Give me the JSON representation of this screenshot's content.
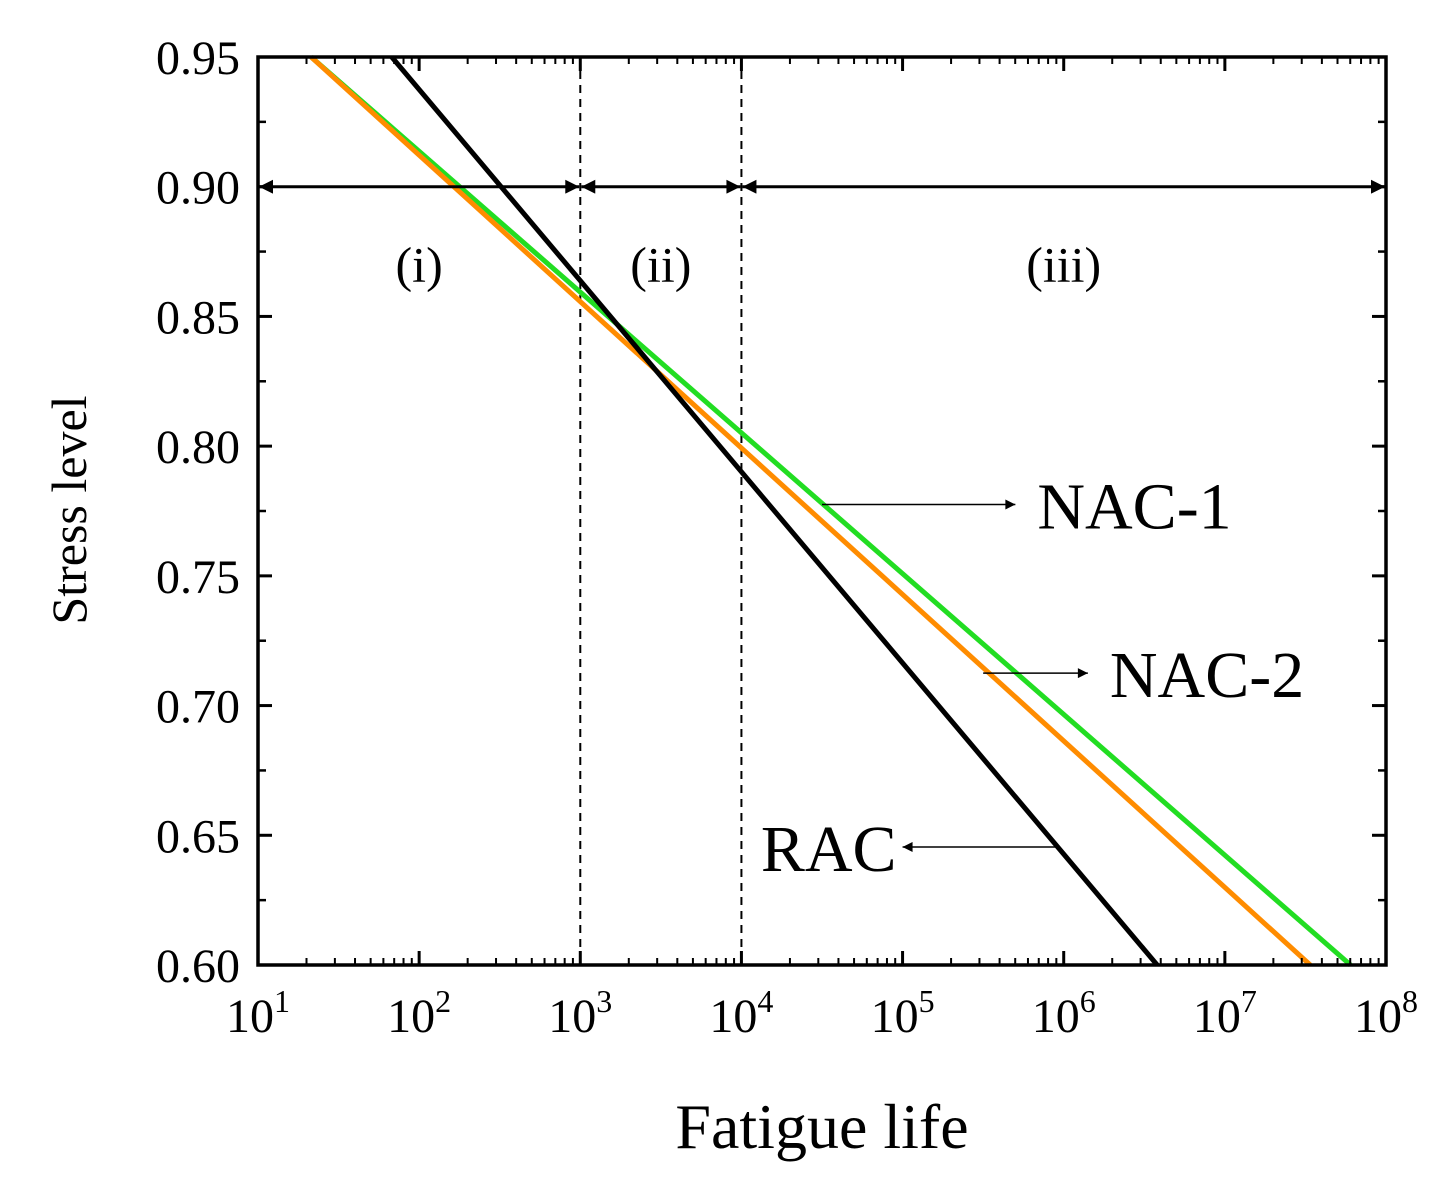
{
  "chart_data": {
    "type": "line",
    "title": "",
    "xlabel": "Fatigue life",
    "ylabel": "Stress level",
    "xscale": "log10",
    "xlim_exponent": [
      1,
      8
    ],
    "ylim": [
      0.6,
      0.95
    ],
    "x_ticks": [
      {
        "base": "10",
        "exp": "1"
      },
      {
        "base": "10",
        "exp": "2"
      },
      {
        "base": "10",
        "exp": "3"
      },
      {
        "base": "10",
        "exp": "4"
      },
      {
        "base": "10",
        "exp": "5"
      },
      {
        "base": "10",
        "exp": "6"
      },
      {
        "base": "10",
        "exp": "7"
      },
      {
        "base": "10",
        "exp": "8"
      }
    ],
    "y_ticks": [
      "0.60",
      "0.65",
      "0.70",
      "0.75",
      "0.80",
      "0.85",
      "0.90",
      "0.95"
    ],
    "series": [
      {
        "name": "NAC-1",
        "color": "#22dd22",
        "log10_x": [
          1.33,
          7.78
        ],
        "y": [
          0.95,
          0.6
        ]
      },
      {
        "name": "NAC-2",
        "color": "#ff8c00",
        "log10_x": [
          1.33,
          7.53
        ],
        "y": [
          0.95,
          0.6
        ]
      },
      {
        "name": "RAC",
        "color": "#000000",
        "log10_x": [
          1.83,
          6.58
        ],
        "y": [
          0.95,
          0.6
        ]
      }
    ],
    "annotations": {
      "dividers_log10_x": [
        3,
        4
      ],
      "regions": [
        {
          "label": "(i)",
          "from_log10_x": 1,
          "to_log10_x": 3
        },
        {
          "label": "(ii)",
          "from_log10_x": 3,
          "to_log10_x": 4
        },
        {
          "label": "(iii)",
          "from_log10_x": 4,
          "to_log10_x": 8
        }
      ],
      "region_arrow_y": 0.9,
      "series_callouts": [
        {
          "series": "NAC-1",
          "label": "NAC-1",
          "from_log10_x": 4.5,
          "to_log10_x": 5.7,
          "y": 0.7775
        },
        {
          "series": "NAC-2",
          "label": "NAC-2",
          "from_log10_x": 5.5,
          "to_log10_x": 6.15,
          "y": 0.7125
        },
        {
          "series": "RAC",
          "label": "RAC",
          "from_log10_x": 5.95,
          "to_log10_x": 5.0,
          "y": 0.6455
        }
      ]
    }
  }
}
